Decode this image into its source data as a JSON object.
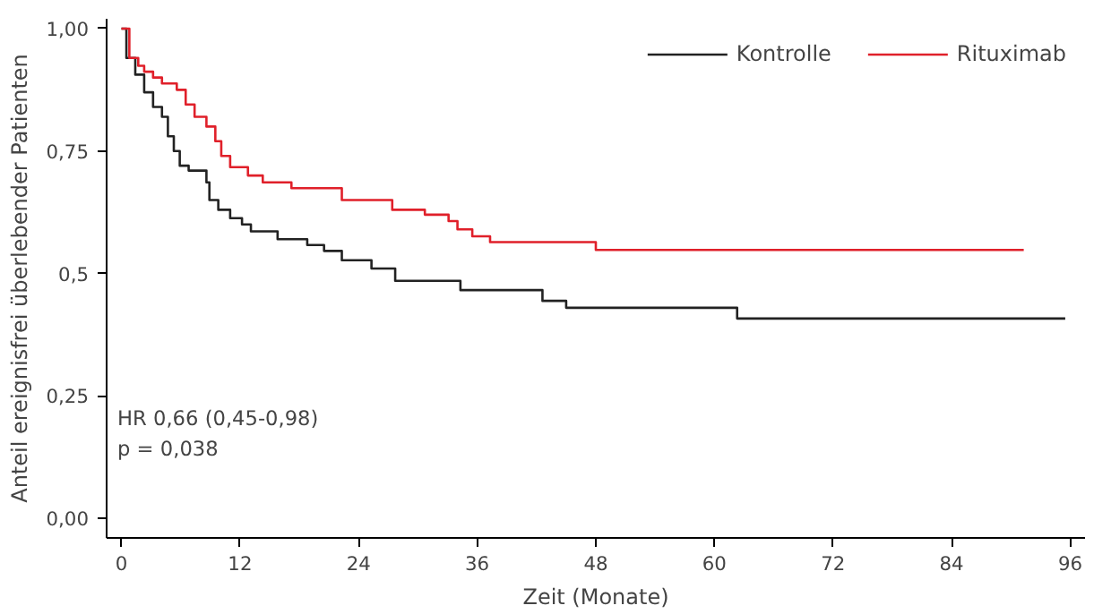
{
  "chart_data": {
    "type": "step",
    "xlabel": "Zeit (Monate)",
    "ylabel": "Anteil ereignisfrei überlebender Patienten",
    "xlim": [
      -1.5,
      97.5
    ],
    "ylim": [
      -0.04,
      1.02
    ],
    "xticks": [
      0,
      12,
      24,
      36,
      48,
      60,
      72,
      84,
      96
    ],
    "yticks": [
      {
        "value": 0,
        "label": "0,00"
      },
      {
        "value": 0.25,
        "label": "0,25"
      },
      {
        "value": 0.5,
        "label": "0,5"
      },
      {
        "value": 0.75,
        "label": "0,75"
      },
      {
        "value": 1,
        "label": "1,00"
      }
    ],
    "series": [
      {
        "name": "Kontrolle",
        "color": "#222222",
        "x": [
          0,
          0.5,
          1.4,
          2.3,
          3.2,
          4.1,
          4.7,
          5.3,
          5.9,
          6.8,
          8.6,
          8.9,
          9.8,
          11,
          12.2,
          13.1,
          15.8,
          18.8,
          20.5,
          22.3,
          25.3,
          27.7,
          34.3,
          42.6,
          45,
          62.3,
          95.5
        ],
        "values": [
          1,
          0.94,
          0.906,
          0.87,
          0.84,
          0.82,
          0.78,
          0.75,
          0.72,
          0.71,
          0.686,
          0.65,
          0.63,
          0.613,
          0.6,
          0.586,
          0.57,
          0.558,
          0.546,
          0.527,
          0.51,
          0.485,
          0.466,
          0.444,
          0.43,
          0.408,
          0.408
        ]
      },
      {
        "name": "Rituximab",
        "color": "#e0202a",
        "x": [
          0,
          0.8,
          1.7,
          2.3,
          3.2,
          4.1,
          5.6,
          6.5,
          7.4,
          8.6,
          9.5,
          10.1,
          11,
          12.8,
          14.3,
          17.2,
          22.3,
          27.4,
          30.7,
          33.1,
          34,
          35.5,
          37.3,
          48,
          91.3
        ],
        "values": [
          1,
          0.94,
          0.924,
          0.912,
          0.9,
          0.888,
          0.875,
          0.845,
          0.82,
          0.8,
          0.77,
          0.74,
          0.717,
          0.7,
          0.686,
          0.674,
          0.65,
          0.63,
          0.62,
          0.607,
          0.59,
          0.576,
          0.564,
          0.548,
          0.548
        ]
      }
    ],
    "legend": "top right",
    "grid": false,
    "annotations": [
      {
        "text": "HR 0,66 (0,45-0,98)"
      },
      {
        "text": "p = 0,038"
      }
    ]
  }
}
